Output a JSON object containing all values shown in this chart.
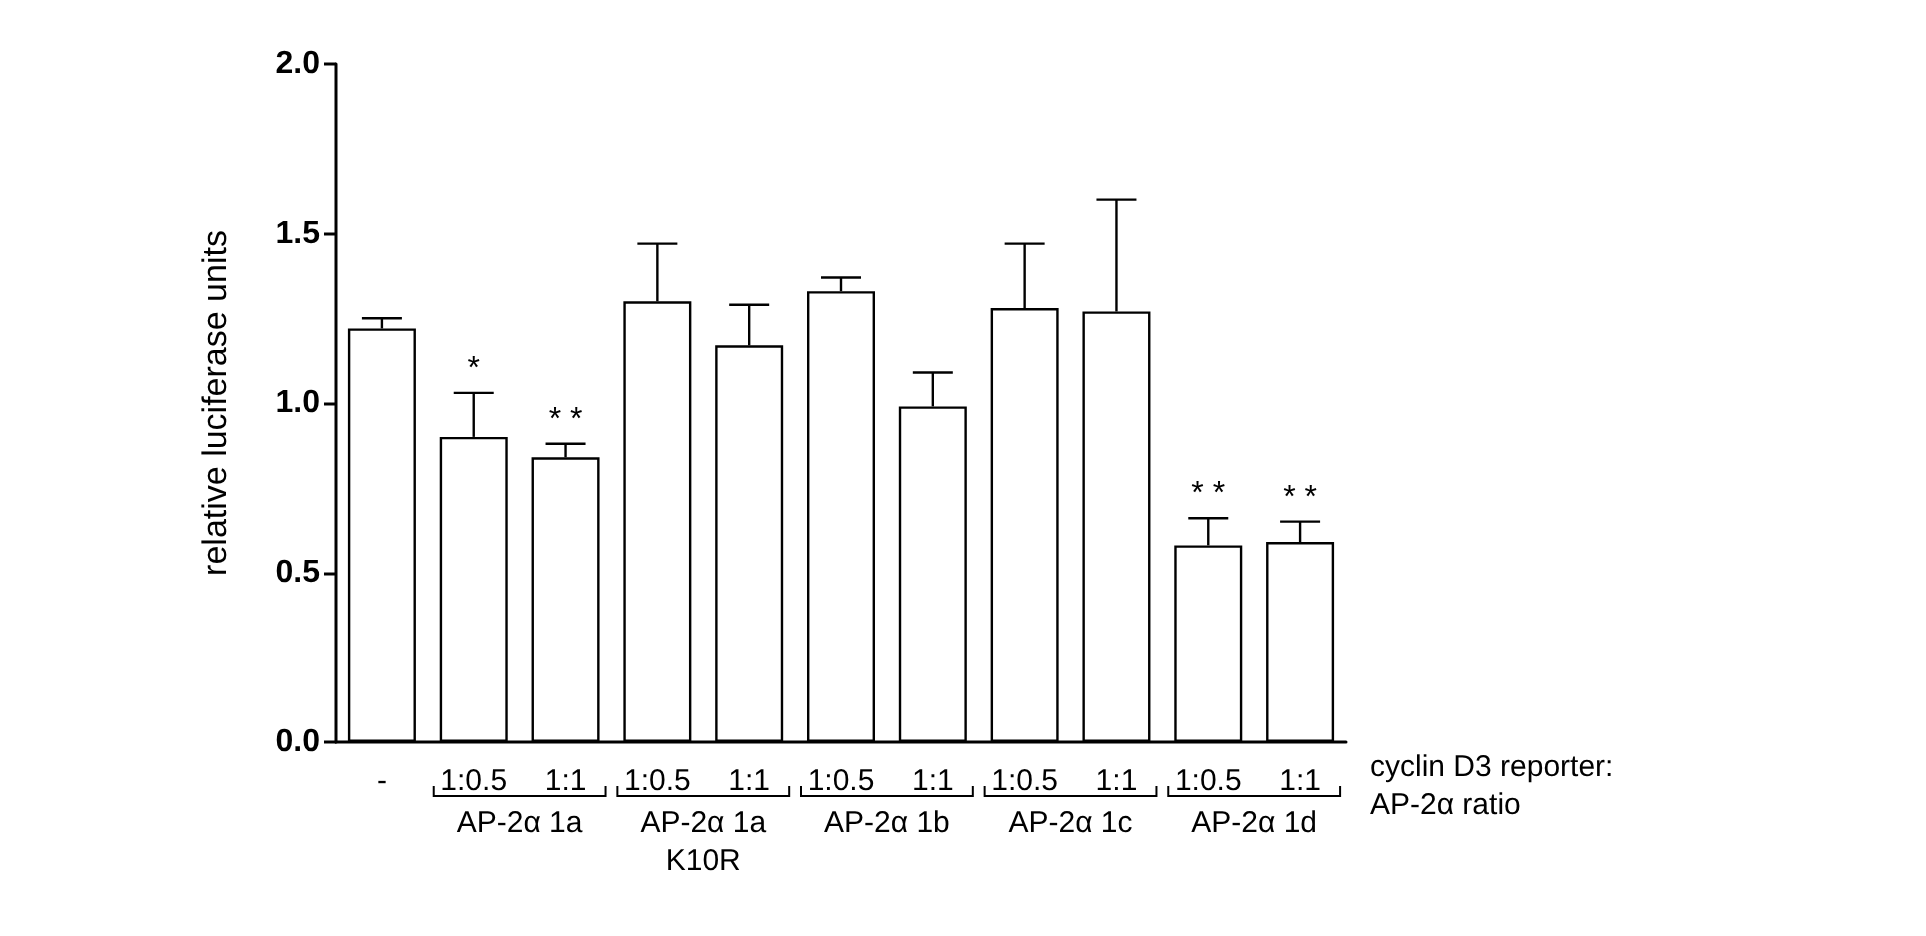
{
  "chart_data": {
    "type": "bar",
    "ylabel": "relative luciferase units",
    "categories": [
      "-",
      "1:0.5",
      "1:1",
      "1:0.5",
      "1:1",
      "1:0.5",
      "1:1",
      "1:0.5",
      "1:1",
      "1:0.5",
      "1:1"
    ],
    "values": [
      1.22,
      0.9,
      0.84,
      1.3,
      1.17,
      1.33,
      0.99,
      1.28,
      1.27,
      0.58,
      0.59
    ],
    "errors": [
      [
        1.22,
        1.25
      ],
      [
        0.9,
        1.03
      ],
      [
        0.84,
        0.88
      ],
      [
        1.3,
        1.47
      ],
      [
        1.17,
        1.29
      ],
      [
        1.33,
        1.37
      ],
      [
        0.99,
        1.09
      ],
      [
        1.28,
        1.47
      ],
      [
        1.27,
        1.6
      ],
      [
        0.58,
        0.66
      ],
      [
        0.59,
        0.65
      ]
    ],
    "value_labels": [
      null,
      "*",
      "* *",
      null,
      null,
      null,
      null,
      null,
      null,
      "* *",
      "* *"
    ],
    "color": "#ffffff",
    "ylim": [
      0,
      2
    ],
    "yticks": [
      {
        "value": 0,
        "label": "0.0"
      },
      {
        "value": 0.5,
        "label": "0.5"
      },
      {
        "value": 1,
        "label": "1.0"
      },
      {
        "value": 1.5,
        "label": "1.5"
      },
      {
        "value": 2,
        "label": "2.0"
      }
    ],
    "grid": false,
    "annotations": [
      "AP-2α 1a",
      "AP-2α 1a\nK10R",
      "AP-2α 1b",
      "AP-2α 1c",
      "AP-2α 1d",
      "cyclin D3 reporter:\nAP-2α ratio"
    ]
  }
}
